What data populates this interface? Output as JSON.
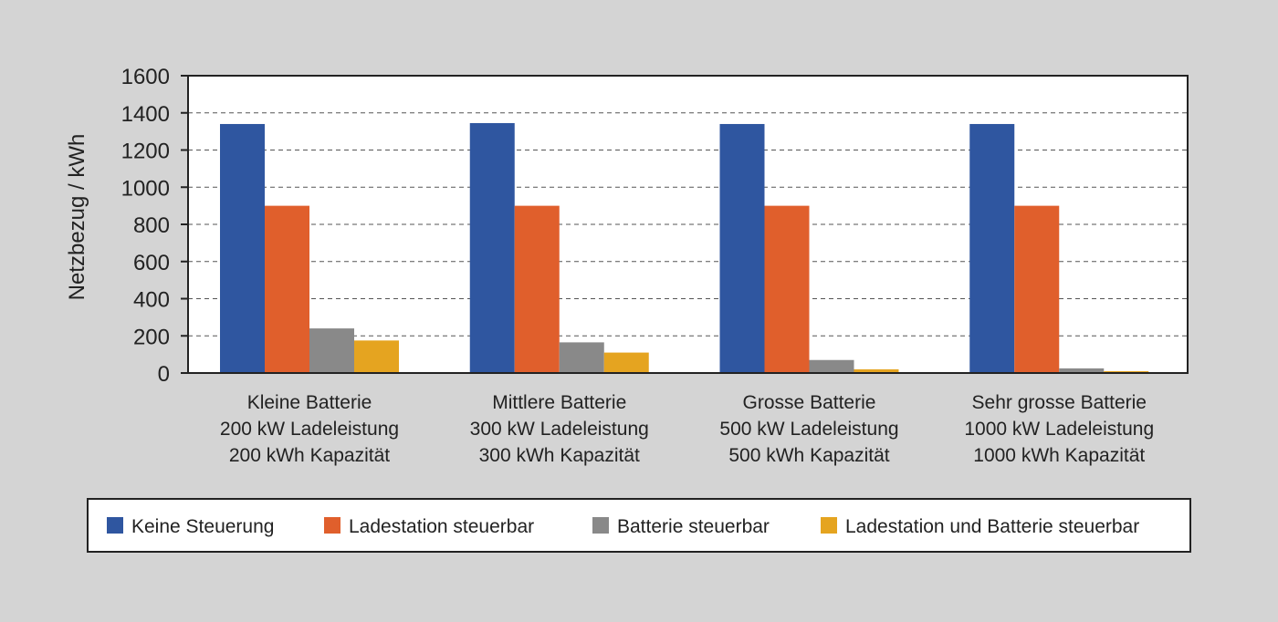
{
  "chart_data": {
    "type": "bar",
    "ylabel": "Netzbezug / kWh",
    "ylim": [
      0,
      1600
    ],
    "yticks": [
      0,
      200,
      400,
      600,
      800,
      1000,
      1200,
      1400,
      1600
    ],
    "grid": "horizontal dashed",
    "legend_position": "bottom",
    "categories": [
      [
        "Kleine Batterie",
        "200 kW Ladeleistung",
        "200 kWh Kapazität"
      ],
      [
        "Mittlere Batterie",
        "300 kW Ladeleistung",
        "300 kWh Kapazität"
      ],
      [
        "Grosse Batterie",
        "500 kW Ladeleistung",
        "500 kWh Kapazität"
      ],
      [
        "Sehr grosse Batterie",
        "1000 kW Ladeleistung",
        "1000 kWh Kapazität"
      ]
    ],
    "series": [
      {
        "name": "Keine Steuerung",
        "color": "#2f56a0",
        "values": [
          1340,
          1345,
          1340,
          1340
        ]
      },
      {
        "name": "Ladestation steuerbar",
        "color": "#e05f2c",
        "values": [
          900,
          900,
          900,
          900
        ]
      },
      {
        "name": "Batterie steuerbar",
        "color": "#898989",
        "values": [
          240,
          165,
          70,
          25
        ]
      },
      {
        "name": "Ladestation und Batterie steuerbar",
        "color": "#e5a420",
        "values": [
          175,
          110,
          20,
          10
        ]
      }
    ]
  }
}
